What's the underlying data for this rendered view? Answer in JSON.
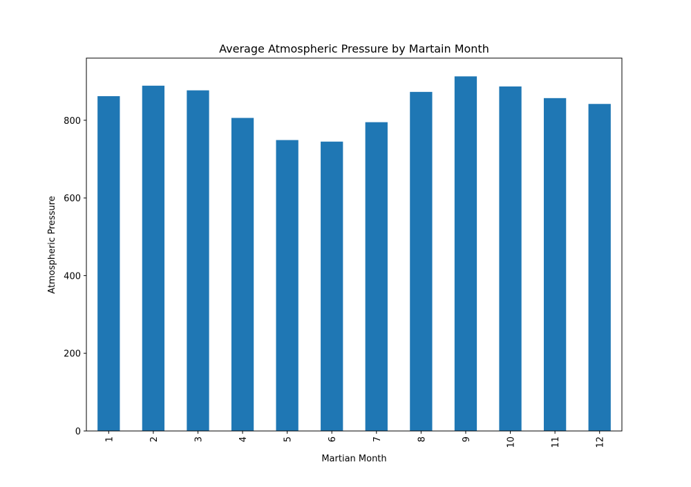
{
  "chart_data": {
    "type": "bar",
    "title": "Average Atmospheric Pressure by Martain Month",
    "xlabel": "Martian Month",
    "ylabel": "Atmospheric Pressure",
    "categories": [
      "1",
      "2",
      "3",
      "4",
      "5",
      "6",
      "7",
      "8",
      "9",
      "10",
      "11",
      "12"
    ],
    "values": [
      862,
      889,
      877,
      806,
      749,
      745,
      795,
      873,
      913,
      887,
      857,
      842
    ],
    "ylim": [
      0,
      960
    ],
    "yticks": [
      0,
      200,
      400,
      600,
      800
    ],
    "bar_color": "#1f77b4",
    "grid": false,
    "legend": "none"
  }
}
